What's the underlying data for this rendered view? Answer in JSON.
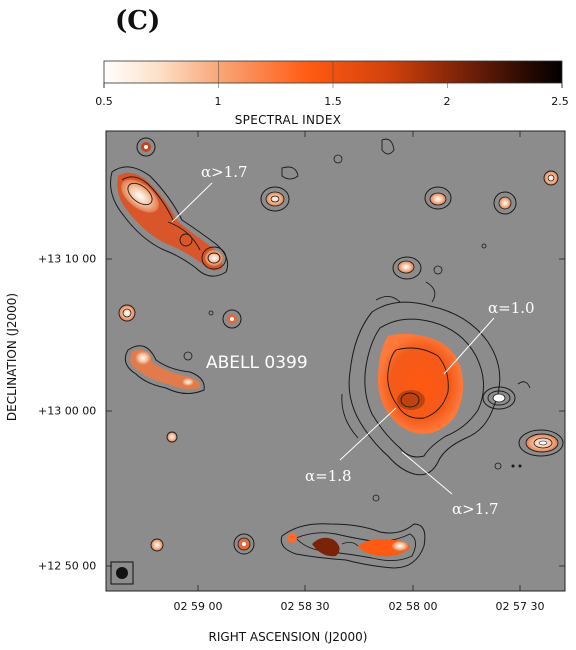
{
  "panel_label": "(C)",
  "colorbar": {
    "title": "SPECTRAL INDEX",
    "ticks": [
      "0.5",
      "1",
      "1.5",
      "2",
      "2.5"
    ]
  },
  "axes": {
    "xlabel": "RIGHT ASCENSION (J2000)",
    "ylabel": "DECLINATION (J2000)",
    "xticks": [
      "02 59 00",
      "02 58 30",
      "02 58 00",
      "02 57 30"
    ],
    "yticks": [
      "+13 10 00",
      "+13 00 00",
      "+12 50 00"
    ]
  },
  "annotations": {
    "cluster": "ABELL 0399",
    "alpha_top_left": "α>1.7",
    "alpha_right_top": "α=1.0",
    "alpha_center": "α=1.8",
    "alpha_bottom_right": "α>1.7"
  },
  "colors": {
    "background": "#8c8c8c",
    "contour": "#1a1a1a",
    "emission_orange": "#ff5a12"
  }
}
